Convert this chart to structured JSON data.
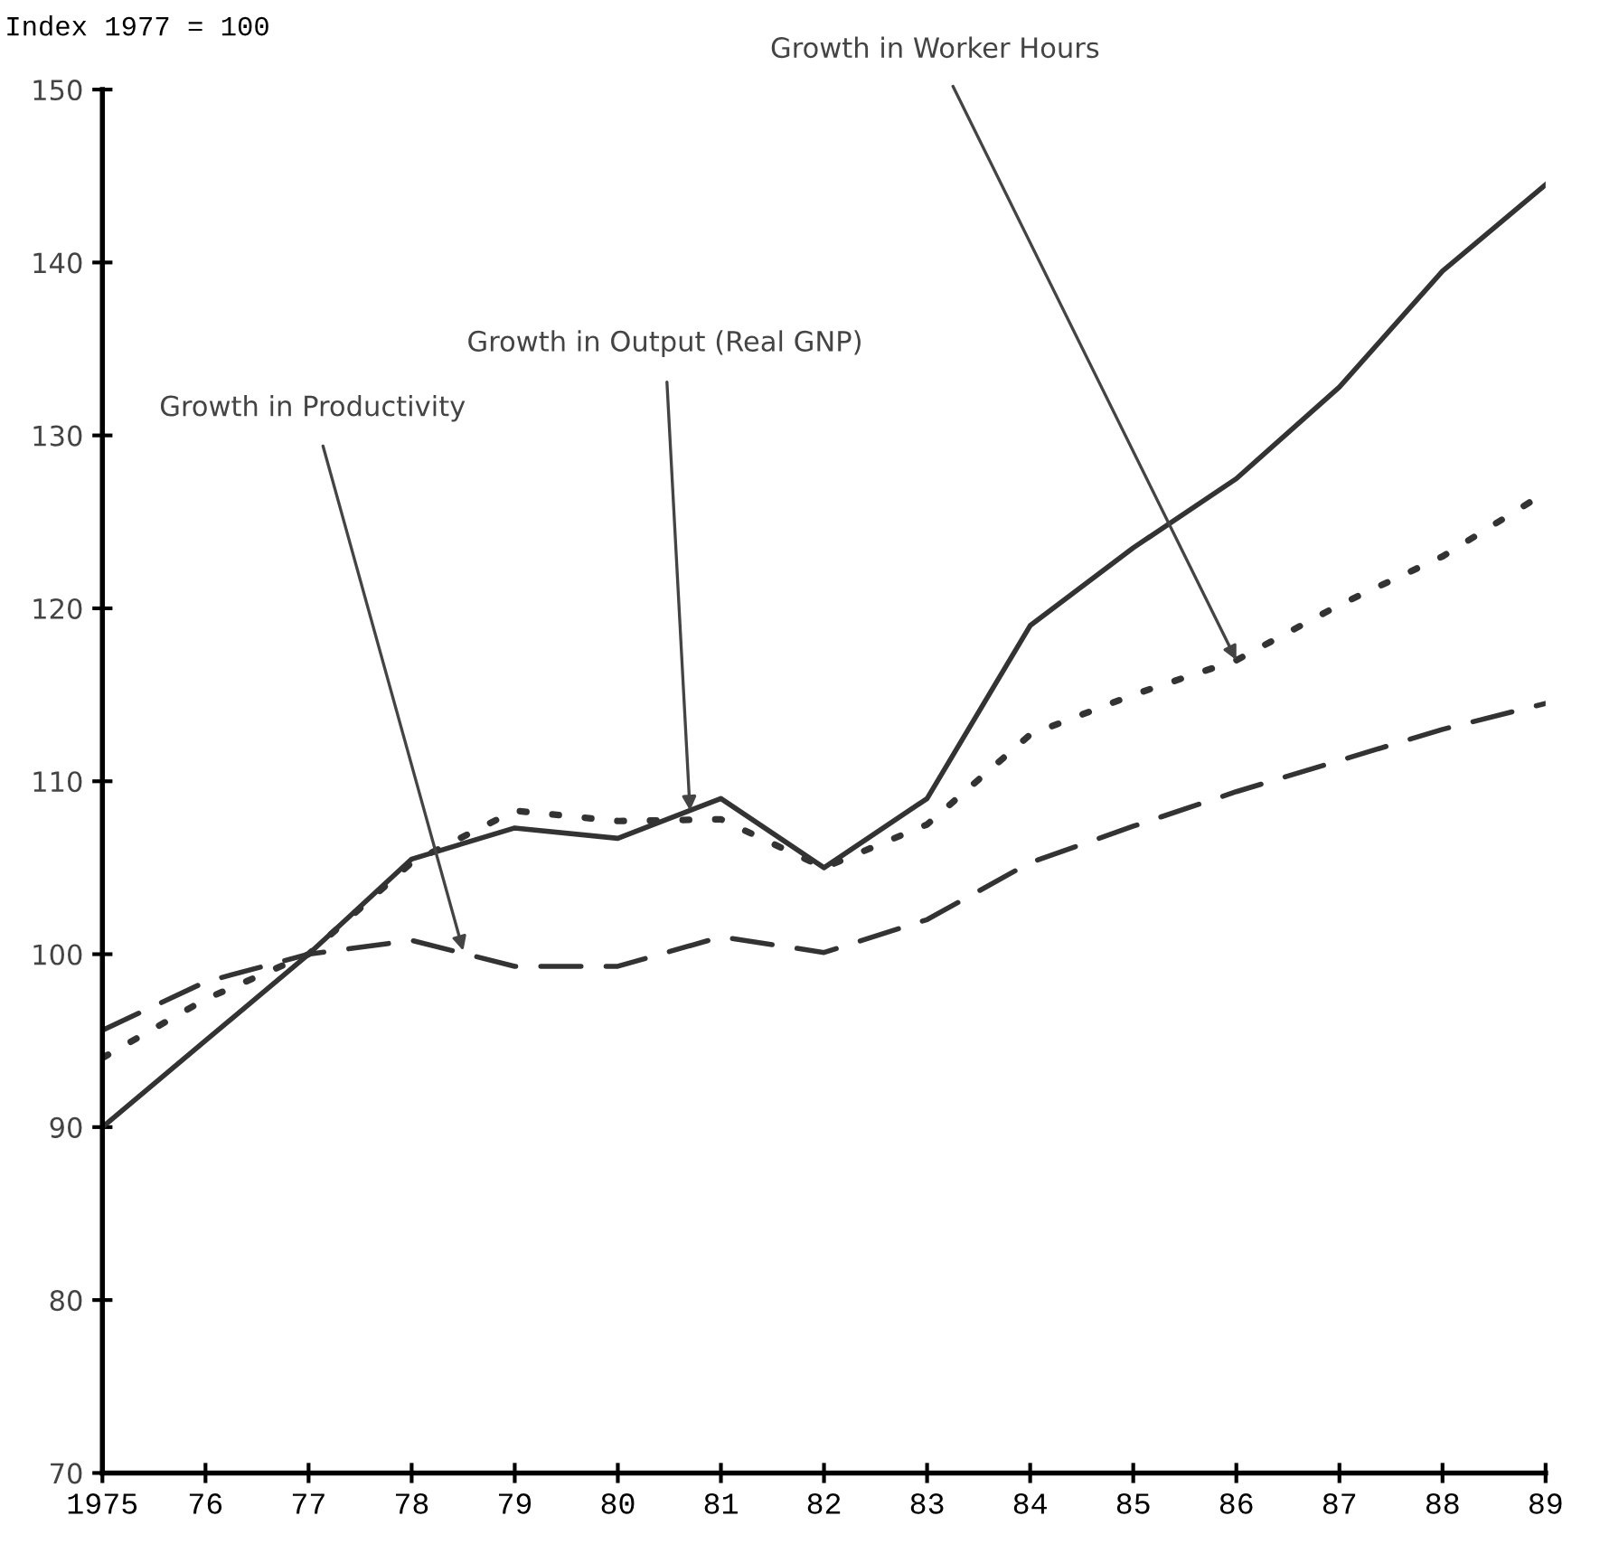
{
  "chart_data": {
    "type": "line",
    "ylabel": "Index 1977 = 100",
    "x": [
      1975,
      1976,
      1977,
      1978,
      1979,
      1980,
      1981,
      1982,
      1983,
      1984,
      1985,
      1986,
      1987,
      1988,
      1989
    ],
    "series": [
      {
        "color": "#333333",
        "line_style": "solid",
        "values": [
          90,
          95,
          100,
          105.5,
          107.3,
          106.7,
          109,
          105,
          109,
          119,
          123.5,
          127.5,
          132.8,
          139.5,
          144.5
        ]
      },
      {
        "color": "#333333",
        "line_style": "dotted",
        "values": [
          94,
          97.4,
          100,
          105.3,
          108.3,
          107.7,
          107.8,
          105,
          107.5,
          112.7,
          115,
          117,
          120.2,
          123,
          126.7
        ]
      },
      {
        "color": "#333333",
        "line_style": "dashed",
        "values": [
          95.6,
          98.4,
          100,
          100.8,
          99.3,
          99.3,
          101,
          100.1,
          102,
          105.3,
          107.4,
          109.4,
          111.2,
          113,
          114.5
        ]
      }
    ],
    "xlim": [
      1975,
      1989
    ],
    "xticks": [
      1975,
      {
        "value": 1976,
        "label": "76"
      },
      {
        "value": 1977,
        "label": "77"
      },
      {
        "value": 1978,
        "label": "78"
      },
      {
        "value": 1979,
        "label": "79"
      },
      {
        "value": 1980,
        "label": "80"
      },
      {
        "value": 1981,
        "label": "81"
      },
      {
        "value": 1982,
        "label": "82"
      },
      {
        "value": 1983,
        "label": "83"
      },
      {
        "value": 1984,
        "label": "84"
      },
      {
        "value": 1985,
        "label": "85"
      },
      {
        "value": 1986,
        "label": "86"
      },
      {
        "value": 1987,
        "label": "87"
      },
      {
        "value": 1988,
        "label": "88"
      },
      {
        "value": 1989,
        "label": "89"
      }
    ],
    "ylim": [
      70,
      150
    ],
    "yticks": [
      70,
      80,
      90,
      100,
      110,
      120,
      130,
      140,
      150
    ],
    "grid": false,
    "legend": false,
    "annotations": [
      {
        "text": "Growth in Productivity",
        "x": 1978.5,
        "y": 100.2
      },
      {
        "text": "Growth in Output (Real GNP)",
        "x": 1980.7,
        "y": 108.3
      },
      {
        "text": "Growth in Worker Hours",
        "x": 1986,
        "y": 117
      }
    ]
  }
}
